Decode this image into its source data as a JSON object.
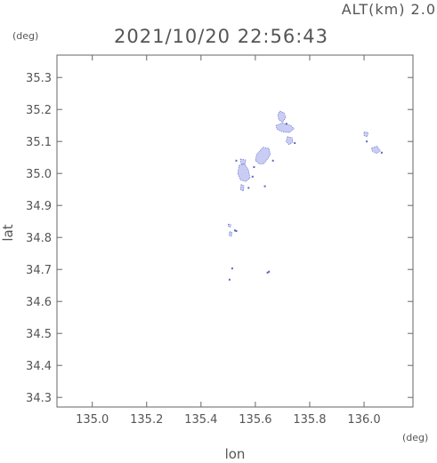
{
  "header": {
    "altitude_label": "ALT(km) 2.0",
    "timestamp": "2021/10/20 22:56:43"
  },
  "chart_data": {
    "type": "scatter",
    "xlabel": "lon",
    "ylabel": "lat",
    "x_unit": "(deg)",
    "y_unit": "(deg)",
    "xlim": [
      134.87,
      136.18
    ],
    "ylim": [
      34.27,
      35.37
    ],
    "x_ticks": [
      "135.0",
      "135.2",
      "135.4",
      "135.6",
      "135.8",
      "136.0"
    ],
    "x_tick_values": [
      135.0,
      135.2,
      135.4,
      135.6,
      135.8,
      136.0
    ],
    "y_ticks": [
      "34.3",
      "34.4",
      "34.5",
      "34.6",
      "34.7",
      "34.8",
      "34.9",
      "35.0",
      "35.1",
      "35.2",
      "35.3"
    ],
    "y_tick_values": [
      34.3,
      34.4,
      34.5,
      34.6,
      34.7,
      34.8,
      34.9,
      35.0,
      35.1,
      35.2,
      35.3
    ],
    "grid": false,
    "echo_color": "#c9cdf4",
    "echo_edge_color": "#5a63c8",
    "echo_regions": [
      {
        "name": "",
        "points": [
          [
            135.69,
            35.195
          ],
          [
            135.705,
            35.19
          ],
          [
            135.712,
            35.175
          ],
          [
            135.7,
            35.16
          ],
          [
            135.686,
            35.168
          ],
          [
            135.683,
            35.183
          ]
        ]
      },
      {
        "name": "",
        "points": [
          [
            135.676,
            35.15
          ],
          [
            135.7,
            35.158
          ],
          [
            135.73,
            35.15
          ],
          [
            135.742,
            35.14
          ],
          [
            135.725,
            35.128
          ],
          [
            135.7,
            35.13
          ],
          [
            135.68,
            35.138
          ]
        ]
      },
      {
        "name": "",
        "points": [
          [
            135.718,
            35.115
          ],
          [
            135.735,
            35.112
          ],
          [
            135.738,
            35.098
          ],
          [
            135.724,
            35.09
          ],
          [
            135.713,
            35.1
          ]
        ]
      },
      {
        "name": "",
        "points": [
          [
            135.628,
            35.082
          ],
          [
            135.65,
            35.078
          ],
          [
            135.655,
            35.06
          ],
          [
            135.645,
            35.045
          ],
          [
            135.63,
            35.03
          ],
          [
            135.615,
            35.03
          ],
          [
            135.6,
            35.04
          ],
          [
            135.605,
            35.06
          ],
          [
            135.618,
            35.072
          ]
        ]
      },
      {
        "name": "",
        "points": [
          [
            135.545,
            35.045
          ],
          [
            135.565,
            35.042
          ],
          [
            135.562,
            35.03
          ],
          [
            135.548,
            35.028
          ]
        ]
      },
      {
        "name": "",
        "points": [
          [
            135.54,
            35.025
          ],
          [
            135.56,
            35.03
          ],
          [
            135.575,
            35.01
          ],
          [
            135.58,
            34.985
          ],
          [
            135.565,
            34.975
          ],
          [
            135.545,
            34.98
          ],
          [
            135.535,
            35.0
          ]
        ]
      },
      {
        "name": "",
        "points": [
          [
            135.548,
            34.965
          ],
          [
            135.558,
            34.962
          ],
          [
            135.556,
            34.945
          ],
          [
            135.545,
            34.95
          ]
        ]
      },
      {
        "name": "",
        "points": [
          [
            136.0,
            35.13
          ],
          [
            136.015,
            35.128
          ],
          [
            136.012,
            35.115
          ],
          [
            136.0,
            35.118
          ]
        ]
      },
      {
        "name": "",
        "points": [
          [
            136.028,
            35.08
          ],
          [
            136.048,
            35.085
          ],
          [
            136.06,
            35.07
          ],
          [
            136.045,
            35.063
          ],
          [
            136.03,
            35.07
          ]
        ]
      },
      {
        "name": "",
        "points": [
          [
            135.5,
            34.842
          ],
          [
            135.51,
            34.84
          ],
          [
            135.508,
            34.832
          ],
          [
            135.5,
            34.835
          ]
        ]
      },
      {
        "name": "",
        "points": [
          [
            135.505,
            34.818
          ],
          [
            135.514,
            34.816
          ],
          [
            135.512,
            34.803
          ],
          [
            135.504,
            34.806
          ]
        ]
      }
    ],
    "echo_dots": [
      [
        135.53,
        34.82
      ],
      [
        135.525,
        34.822
      ],
      [
        135.515,
        34.703
      ],
      [
        135.505,
        34.668
      ],
      [
        135.65,
        34.693
      ],
      [
        135.645,
        34.69
      ],
      [
        135.635,
        34.96
      ],
      [
        135.575,
        34.955
      ],
      [
        135.53,
        35.04
      ],
      [
        135.595,
        35.02
      ],
      [
        135.745,
        35.095
      ],
      [
        135.715,
        35.155
      ],
      [
        136.01,
        35.1
      ],
      [
        136.065,
        35.065
      ],
      [
        135.59,
        34.99
      ],
      [
        135.665,
        35.04
      ]
    ]
  }
}
